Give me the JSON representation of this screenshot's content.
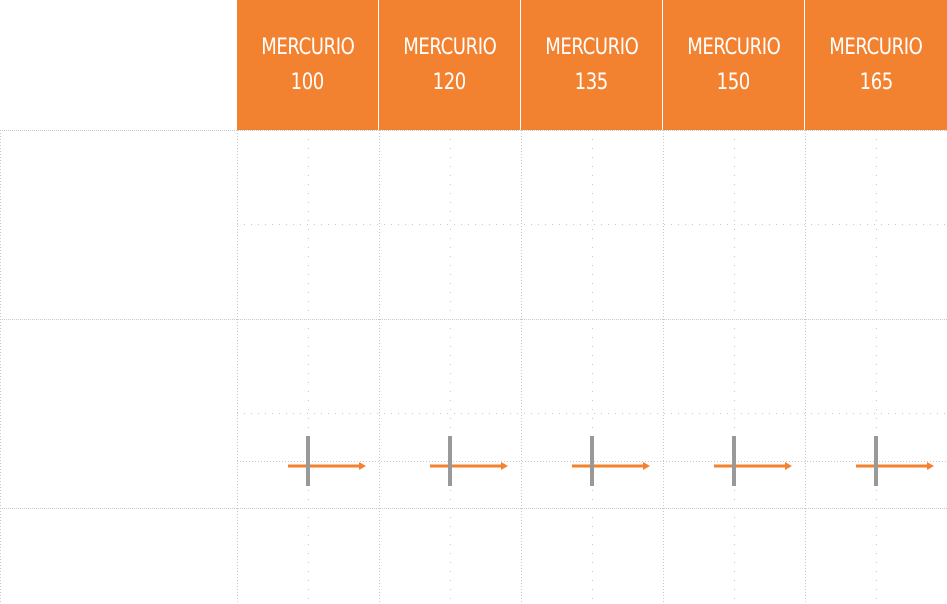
{
  "columns": [
    {
      "model": "MERCURIO",
      "number": "100"
    },
    {
      "model": "MERCURIO",
      "number": "120"
    },
    {
      "model": "MERCURIO",
      "number": "135"
    },
    {
      "model": "MERCURIO",
      "number": "150"
    },
    {
      "model": "MERCURIO",
      "number": "165"
    }
  ],
  "colors": {
    "accent": "#f38230",
    "header_text": "#ffffff",
    "grid": "#c8c8c8",
    "marker": "#999999",
    "arrow": "#f38230"
  },
  "icons": {
    "marker": "direction-arrow-icon"
  }
}
